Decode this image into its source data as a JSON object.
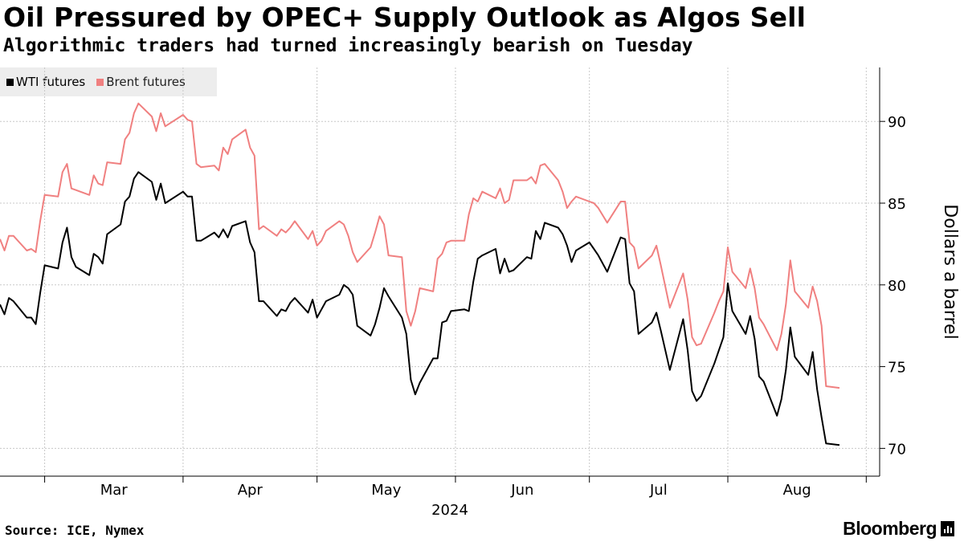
{
  "header": {
    "title": "Oil Pressured by OPEC+ Supply Outlook as Algos Sell",
    "subtitle": "Algorithmic traders had turned increasingly bearish on Tuesday"
  },
  "footer": {
    "source": "Source: ICE, Nymex",
    "brand": "Bloomberg"
  },
  "chart_data": {
    "type": "line",
    "title": "Oil Pressured by OPEC+ Supply Outlook as Algos Sell",
    "subtitle": "Algorithmic traders had turned increasingly bearish on Tuesday",
    "ylabel": "Dollars a barrel",
    "xlabel": "2024",
    "ylim": [
      68.3,
      93.3
    ],
    "xlim": [
      "2024-02-20",
      "2024-09-04"
    ],
    "y_ticks": [
      70,
      75,
      80,
      85,
      90
    ],
    "x_ticks": [
      {
        "label": "Mar",
        "date": "2024-03-01"
      },
      {
        "label": "Apr",
        "date": "2024-04-01"
      },
      {
        "label": "May",
        "date": "2024-05-01"
      },
      {
        "label": "Jun",
        "date": "2024-06-01"
      },
      {
        "label": "Jul",
        "date": "2024-07-01"
      },
      {
        "label": "Aug",
        "date": "2024-08-01"
      }
    ],
    "year_label": "2024",
    "grid": true,
    "legend_position": "top-left",
    "series": [
      {
        "name": "WTI futures",
        "color": "#000000",
        "points": [
          [
            "2024-02-20",
            78.8
          ],
          [
            "2024-02-21",
            78.2
          ],
          [
            "2024-02-22",
            79.2
          ],
          [
            "2024-02-23",
            79.0
          ],
          [
            "2024-02-26",
            78.0
          ],
          [
            "2024-02-27",
            78.0
          ],
          [
            "2024-02-28",
            77.6
          ],
          [
            "2024-02-29",
            79.5
          ],
          [
            "2024-03-01",
            81.2
          ],
          [
            "2024-03-04",
            81.0
          ],
          [
            "2024-03-05",
            82.6
          ],
          [
            "2024-03-06",
            83.5
          ],
          [
            "2024-03-07",
            81.7
          ],
          [
            "2024-03-08",
            81.1
          ],
          [
            "2024-03-11",
            80.6
          ],
          [
            "2024-03-12",
            81.9
          ],
          [
            "2024-03-13",
            81.7
          ],
          [
            "2024-03-14",
            81.3
          ],
          [
            "2024-03-15",
            83.1
          ],
          [
            "2024-03-18",
            83.7
          ],
          [
            "2024-03-19",
            85.1
          ],
          [
            "2024-03-20",
            85.4
          ],
          [
            "2024-03-21",
            86.5
          ],
          [
            "2024-03-22",
            86.9
          ],
          [
            "2024-03-25",
            86.3
          ],
          [
            "2024-03-26",
            85.2
          ],
          [
            "2024-03-27",
            86.2
          ],
          [
            "2024-03-28",
            85.0
          ],
          [
            "2024-04-01",
            85.7
          ],
          [
            "2024-04-02",
            85.4
          ],
          [
            "2024-04-03",
            85.4
          ],
          [
            "2024-04-04",
            82.7
          ],
          [
            "2024-04-05",
            82.7
          ],
          [
            "2024-04-08",
            83.2
          ],
          [
            "2024-04-09",
            82.9
          ],
          [
            "2024-04-10",
            83.4
          ],
          [
            "2024-04-11",
            82.9
          ],
          [
            "2024-04-12",
            83.6
          ],
          [
            "2024-04-15",
            83.9
          ],
          [
            "2024-04-16",
            82.6
          ],
          [
            "2024-04-17",
            82.0
          ],
          [
            "2024-04-18",
            79.0
          ],
          [
            "2024-04-19",
            79.0
          ],
          [
            "2024-04-22",
            78.1
          ],
          [
            "2024-04-23",
            78.5
          ],
          [
            "2024-04-24",
            78.4
          ],
          [
            "2024-04-25",
            78.9
          ],
          [
            "2024-04-26",
            79.2
          ],
          [
            "2024-04-29",
            78.3
          ],
          [
            "2024-04-30",
            79.1
          ],
          [
            "2024-05-01",
            78.0
          ],
          [
            "2024-05-02",
            78.5
          ],
          [
            "2024-05-03",
            79.0
          ],
          [
            "2024-05-06",
            79.4
          ],
          [
            "2024-05-07",
            80.0
          ],
          [
            "2024-05-08",
            79.8
          ],
          [
            "2024-05-09",
            79.4
          ],
          [
            "2024-05-10",
            77.5
          ],
          [
            "2024-05-13",
            76.9
          ],
          [
            "2024-05-14",
            77.6
          ],
          [
            "2024-05-15",
            78.6
          ],
          [
            "2024-05-16",
            79.8
          ],
          [
            "2024-05-17",
            79.3
          ],
          [
            "2024-05-20",
            78.0
          ],
          [
            "2024-05-21",
            77.0
          ],
          [
            "2024-05-22",
            74.2
          ],
          [
            "2024-05-23",
            73.3
          ],
          [
            "2024-05-24",
            74.0
          ],
          [
            "2024-05-27",
            75.5
          ],
          [
            "2024-05-28",
            75.5
          ],
          [
            "2024-05-29",
            77.7
          ],
          [
            "2024-05-30",
            77.8
          ],
          [
            "2024-05-31",
            78.4
          ],
          [
            "2024-06-03",
            78.5
          ],
          [
            "2024-06-04",
            78.4
          ],
          [
            "2024-06-05",
            80.2
          ],
          [
            "2024-06-06",
            81.6
          ],
          [
            "2024-06-07",
            81.8
          ],
          [
            "2024-06-10",
            82.2
          ],
          [
            "2024-06-11",
            80.7
          ],
          [
            "2024-06-12",
            81.6
          ],
          [
            "2024-06-13",
            80.8
          ],
          [
            "2024-06-14",
            80.9
          ],
          [
            "2024-06-17",
            81.7
          ],
          [
            "2024-06-18",
            81.6
          ],
          [
            "2024-06-19",
            83.3
          ],
          [
            "2024-06-20",
            82.8
          ],
          [
            "2024-06-21",
            83.8
          ],
          [
            "2024-06-24",
            83.5
          ],
          [
            "2024-06-25",
            83.1
          ],
          [
            "2024-06-26",
            82.4
          ],
          [
            "2024-06-27",
            81.4
          ],
          [
            "2024-06-28",
            82.1
          ],
          [
            "2024-07-01",
            82.6
          ],
          [
            "2024-07-02",
            82.2
          ],
          [
            "2024-07-03",
            81.8
          ],
          [
            "2024-07-05",
            80.8
          ],
          [
            "2024-07-08",
            82.9
          ],
          [
            "2024-07-09",
            82.8
          ],
          [
            "2024-07-10",
            80.1
          ],
          [
            "2024-07-11",
            79.6
          ],
          [
            "2024-07-12",
            77.0
          ],
          [
            "2024-07-15",
            77.7
          ],
          [
            "2024-07-16",
            78.3
          ],
          [
            "2024-07-17",
            77.2
          ],
          [
            "2024-07-18",
            76.0
          ],
          [
            "2024-07-19",
            74.8
          ],
          [
            "2024-07-22",
            77.9
          ],
          [
            "2024-07-23",
            76.0
          ],
          [
            "2024-07-24",
            73.5
          ],
          [
            "2024-07-25",
            72.9
          ],
          [
            "2024-07-26",
            73.2
          ],
          [
            "2024-07-29",
            75.2
          ],
          [
            "2024-07-30",
            76.0
          ],
          [
            "2024-07-31",
            76.8
          ],
          [
            "2024-08-01",
            80.1
          ],
          [
            "2024-08-02",
            78.4
          ],
          [
            "2024-08-05",
            77.0
          ],
          [
            "2024-08-06",
            78.1
          ],
          [
            "2024-08-07",
            76.7
          ],
          [
            "2024-08-08",
            74.4
          ],
          [
            "2024-08-09",
            74.1
          ],
          [
            "2024-08-12",
            72.0
          ],
          [
            "2024-08-13",
            73.0
          ],
          [
            "2024-08-14",
            74.8
          ],
          [
            "2024-08-15",
            77.4
          ],
          [
            "2024-08-16",
            75.6
          ],
          [
            "2024-08-19",
            74.5
          ],
          [
            "2024-08-20",
            75.9
          ],
          [
            "2024-08-21",
            73.6
          ],
          [
            "2024-08-22",
            71.9
          ],
          [
            "2024-08-23",
            70.3
          ],
          [
            "2024-08-26",
            70.2
          ]
        ]
      },
      {
        "name": "Brent futures",
        "color": "#f08080",
        "points": [
          [
            "2024-02-20",
            82.8
          ],
          [
            "2024-02-21",
            82.1
          ],
          [
            "2024-02-22",
            83.0
          ],
          [
            "2024-02-23",
            83.0
          ],
          [
            "2024-02-26",
            82.1
          ],
          [
            "2024-02-27",
            82.2
          ],
          [
            "2024-02-28",
            82.0
          ],
          [
            "2024-02-29",
            83.9
          ],
          [
            "2024-03-01",
            85.5
          ],
          [
            "2024-03-04",
            85.4
          ],
          [
            "2024-03-05",
            86.9
          ],
          [
            "2024-03-06",
            87.4
          ],
          [
            "2024-03-07",
            85.9
          ],
          [
            "2024-03-08",
            85.8
          ],
          [
            "2024-03-11",
            85.5
          ],
          [
            "2024-03-12",
            86.7
          ],
          [
            "2024-03-13",
            86.2
          ],
          [
            "2024-03-14",
            86.1
          ],
          [
            "2024-03-15",
            87.5
          ],
          [
            "2024-03-18",
            87.4
          ],
          [
            "2024-03-19",
            88.9
          ],
          [
            "2024-03-20",
            89.3
          ],
          [
            "2024-03-21",
            90.5
          ],
          [
            "2024-03-22",
            91.1
          ],
          [
            "2024-03-25",
            90.3
          ],
          [
            "2024-03-26",
            89.4
          ],
          [
            "2024-03-27",
            90.5
          ],
          [
            "2024-03-28",
            89.7
          ],
          [
            "2024-04-01",
            90.4
          ],
          [
            "2024-04-02",
            90.1
          ],
          [
            "2024-04-03",
            90.0
          ],
          [
            "2024-04-04",
            87.4
          ],
          [
            "2024-04-05",
            87.2
          ],
          [
            "2024-04-08",
            87.3
          ],
          [
            "2024-04-09",
            87.0
          ],
          [
            "2024-04-10",
            88.4
          ],
          [
            "2024-04-11",
            88.0
          ],
          [
            "2024-04-12",
            88.9
          ],
          [
            "2024-04-15",
            89.5
          ],
          [
            "2024-04-16",
            88.4
          ],
          [
            "2024-04-17",
            87.9
          ],
          [
            "2024-04-18",
            83.4
          ],
          [
            "2024-04-19",
            83.6
          ],
          [
            "2024-04-22",
            83.0
          ],
          [
            "2024-04-23",
            83.4
          ],
          [
            "2024-04-24",
            83.2
          ],
          [
            "2024-04-25",
            83.5
          ],
          [
            "2024-04-26",
            83.9
          ],
          [
            "2024-04-29",
            82.8
          ],
          [
            "2024-04-30",
            83.3
          ],
          [
            "2024-05-01",
            82.4
          ],
          [
            "2024-05-02",
            82.7
          ],
          [
            "2024-05-03",
            83.3
          ],
          [
            "2024-05-06",
            83.9
          ],
          [
            "2024-05-07",
            83.7
          ],
          [
            "2024-05-08",
            83.0
          ],
          [
            "2024-05-09",
            82.0
          ],
          [
            "2024-05-10",
            81.4
          ],
          [
            "2024-05-13",
            82.3
          ],
          [
            "2024-05-14",
            83.2
          ],
          [
            "2024-05-15",
            84.2
          ],
          [
            "2024-05-16",
            83.7
          ],
          [
            "2024-05-17",
            81.8
          ],
          [
            "2024-05-20",
            81.7
          ],
          [
            "2024-05-21",
            78.4
          ],
          [
            "2024-05-22",
            77.5
          ],
          [
            "2024-05-23",
            78.4
          ],
          [
            "2024-05-24",
            79.8
          ],
          [
            "2024-05-27",
            79.6
          ],
          [
            "2024-05-28",
            81.6
          ],
          [
            "2024-05-29",
            81.9
          ],
          [
            "2024-05-30",
            82.6
          ],
          [
            "2024-05-31",
            82.7
          ],
          [
            "2024-06-03",
            82.7
          ],
          [
            "2024-06-04",
            84.3
          ],
          [
            "2024-06-05",
            85.3
          ],
          [
            "2024-06-06",
            85.1
          ],
          [
            "2024-06-07",
            85.7
          ],
          [
            "2024-06-10",
            85.3
          ],
          [
            "2024-06-11",
            85.9
          ],
          [
            "2024-06-12",
            85.0
          ],
          [
            "2024-06-13",
            85.2
          ],
          [
            "2024-06-14",
            86.4
          ],
          [
            "2024-06-17",
            86.4
          ],
          [
            "2024-06-18",
            86.6
          ],
          [
            "2024-06-19",
            86.2
          ],
          [
            "2024-06-20",
            87.3
          ],
          [
            "2024-06-21",
            87.4
          ],
          [
            "2024-06-24",
            86.4
          ],
          [
            "2024-06-25",
            85.7
          ],
          [
            "2024-06-26",
            84.7
          ],
          [
            "2024-06-27",
            85.1
          ],
          [
            "2024-06-28",
            85.4
          ],
          [
            "2024-07-01",
            85.1
          ],
          [
            "2024-07-02",
            85.0
          ],
          [
            "2024-07-03",
            84.7
          ],
          [
            "2024-07-05",
            83.8
          ],
          [
            "2024-07-08",
            85.1
          ],
          [
            "2024-07-09",
            85.1
          ],
          [
            "2024-07-10",
            82.6
          ],
          [
            "2024-07-11",
            82.3
          ],
          [
            "2024-07-12",
            81.0
          ],
          [
            "2024-07-15",
            81.8
          ],
          [
            "2024-07-16",
            82.4
          ],
          [
            "2024-07-17",
            81.2
          ],
          [
            "2024-07-18",
            79.9
          ],
          [
            "2024-07-19",
            78.6
          ],
          [
            "2024-07-22",
            80.7
          ],
          [
            "2024-07-23",
            79.1
          ],
          [
            "2024-07-24",
            76.8
          ],
          [
            "2024-07-25",
            76.3
          ],
          [
            "2024-07-26",
            76.4
          ],
          [
            "2024-07-29",
            78.3
          ],
          [
            "2024-07-30",
            79.0
          ],
          [
            "2024-07-31",
            79.6
          ],
          [
            "2024-08-01",
            82.3
          ],
          [
            "2024-08-02",
            80.8
          ],
          [
            "2024-08-05",
            79.8
          ],
          [
            "2024-08-06",
            81.0
          ],
          [
            "2024-08-07",
            79.8
          ],
          [
            "2024-08-08",
            78.0
          ],
          [
            "2024-08-09",
            77.6
          ],
          [
            "2024-08-12",
            76.0
          ],
          [
            "2024-08-13",
            77.0
          ],
          [
            "2024-08-14",
            78.8
          ],
          [
            "2024-08-15",
            81.5
          ],
          [
            "2024-08-16",
            79.6
          ],
          [
            "2024-08-19",
            78.6
          ],
          [
            "2024-08-20",
            79.9
          ],
          [
            "2024-08-21",
            79.0
          ],
          [
            "2024-08-22",
            77.5
          ],
          [
            "2024-08-23",
            73.8
          ],
          [
            "2024-08-26",
            73.7
          ]
        ]
      }
    ]
  }
}
